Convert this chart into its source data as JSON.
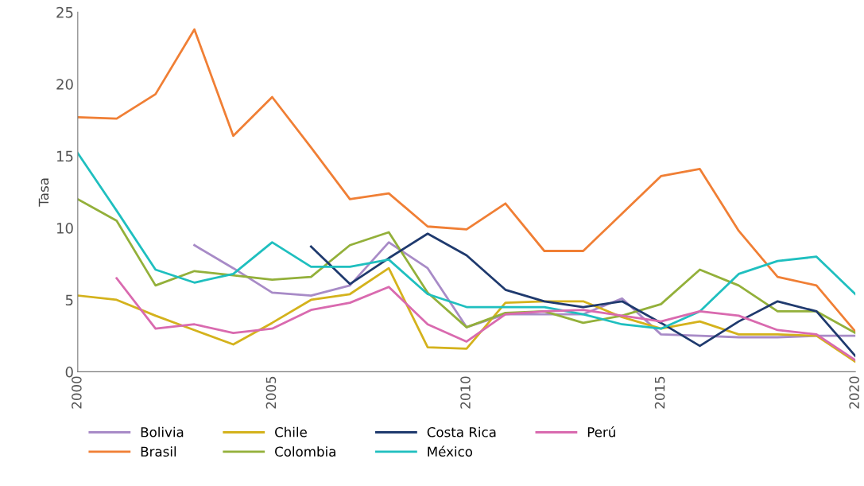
{
  "chart_data": {
    "type": "line",
    "ylabel": "Tasa",
    "x": [
      2000,
      2001,
      2002,
      2003,
      2004,
      2005,
      2006,
      2007,
      2008,
      2009,
      2010,
      2011,
      2012,
      2013,
      2014,
      2015,
      2016,
      2017,
      2018,
      2019,
      2020
    ],
    "xlim": [
      2000,
      2020
    ],
    "xticks": [
      2000,
      2005,
      2010,
      2015,
      2020
    ],
    "ylim": [
      0,
      25
    ],
    "yticks": [
      0,
      5,
      10,
      15,
      20,
      25
    ],
    "grid": false,
    "legend": "bottom",
    "line_style": "solid",
    "series": [
      {
        "name": "Bolivia",
        "color": "#a88bc7",
        "values": [
          null,
          null,
          null,
          8.8,
          7.2,
          5.5,
          5.3,
          6.0,
          9.0,
          7.2,
          3.1,
          4.0,
          4.0,
          4.0,
          5.1,
          2.6,
          2.5,
          2.4,
          2.4,
          2.5,
          2.5
        ]
      },
      {
        "name": "Brasil",
        "color": "#f07f35",
        "values": [
          17.7,
          17.6,
          19.3,
          23.8,
          16.4,
          19.1,
          15.6,
          12.0,
          12.4,
          10.1,
          9.9,
          11.7,
          8.4,
          8.4,
          11.0,
          13.6,
          14.1,
          9.8,
          6.6,
          6.0,
          2.8
        ]
      },
      {
        "name": "Chile",
        "color": "#d4b21c",
        "values": [
          5.3,
          5.0,
          3.9,
          2.9,
          1.9,
          3.4,
          5.0,
          5.4,
          7.2,
          1.7,
          1.6,
          4.8,
          4.9,
          4.9,
          3.8,
          3.0,
          3.5,
          2.6,
          2.6,
          2.5,
          0.7
        ]
      },
      {
        "name": "Colombia",
        "color": "#93b03a",
        "values": [
          12.0,
          10.5,
          6.0,
          7.0,
          6.7,
          6.4,
          6.6,
          8.8,
          9.7,
          5.5,
          3.1,
          4.1,
          4.2,
          3.4,
          3.9,
          4.7,
          7.1,
          6.0,
          4.2,
          4.2,
          2.7
        ]
      },
      {
        "name": "Costa Rica",
        "color": "#1f3a6e",
        "values": [
          null,
          null,
          null,
          null,
          null,
          null,
          8.7,
          6.1,
          7.9,
          9.6,
          8.1,
          5.7,
          4.9,
          4.5,
          4.9,
          3.4,
          1.8,
          3.5,
          4.9,
          4.2,
          1.1
        ]
      },
      {
        "name": "México",
        "color": "#1fbfbf",
        "values": [
          15.2,
          11.2,
          7.1,
          6.2,
          6.8,
          9.0,
          7.3,
          7.3,
          7.8,
          5.4,
          4.5,
          4.5,
          4.5,
          4.0,
          3.3,
          3.0,
          4.2,
          6.8,
          7.7,
          8.0,
          5.4
        ]
      },
      {
        "name": "Perú",
        "color": "#d96aaf",
        "values": [
          null,
          6.5,
          3.0,
          3.3,
          2.7,
          3.0,
          4.3,
          4.8,
          5.9,
          3.3,
          2.1,
          4.0,
          4.2,
          4.3,
          3.9,
          3.5,
          4.2,
          3.9,
          2.9,
          2.6,
          0.8
        ]
      }
    ]
  }
}
